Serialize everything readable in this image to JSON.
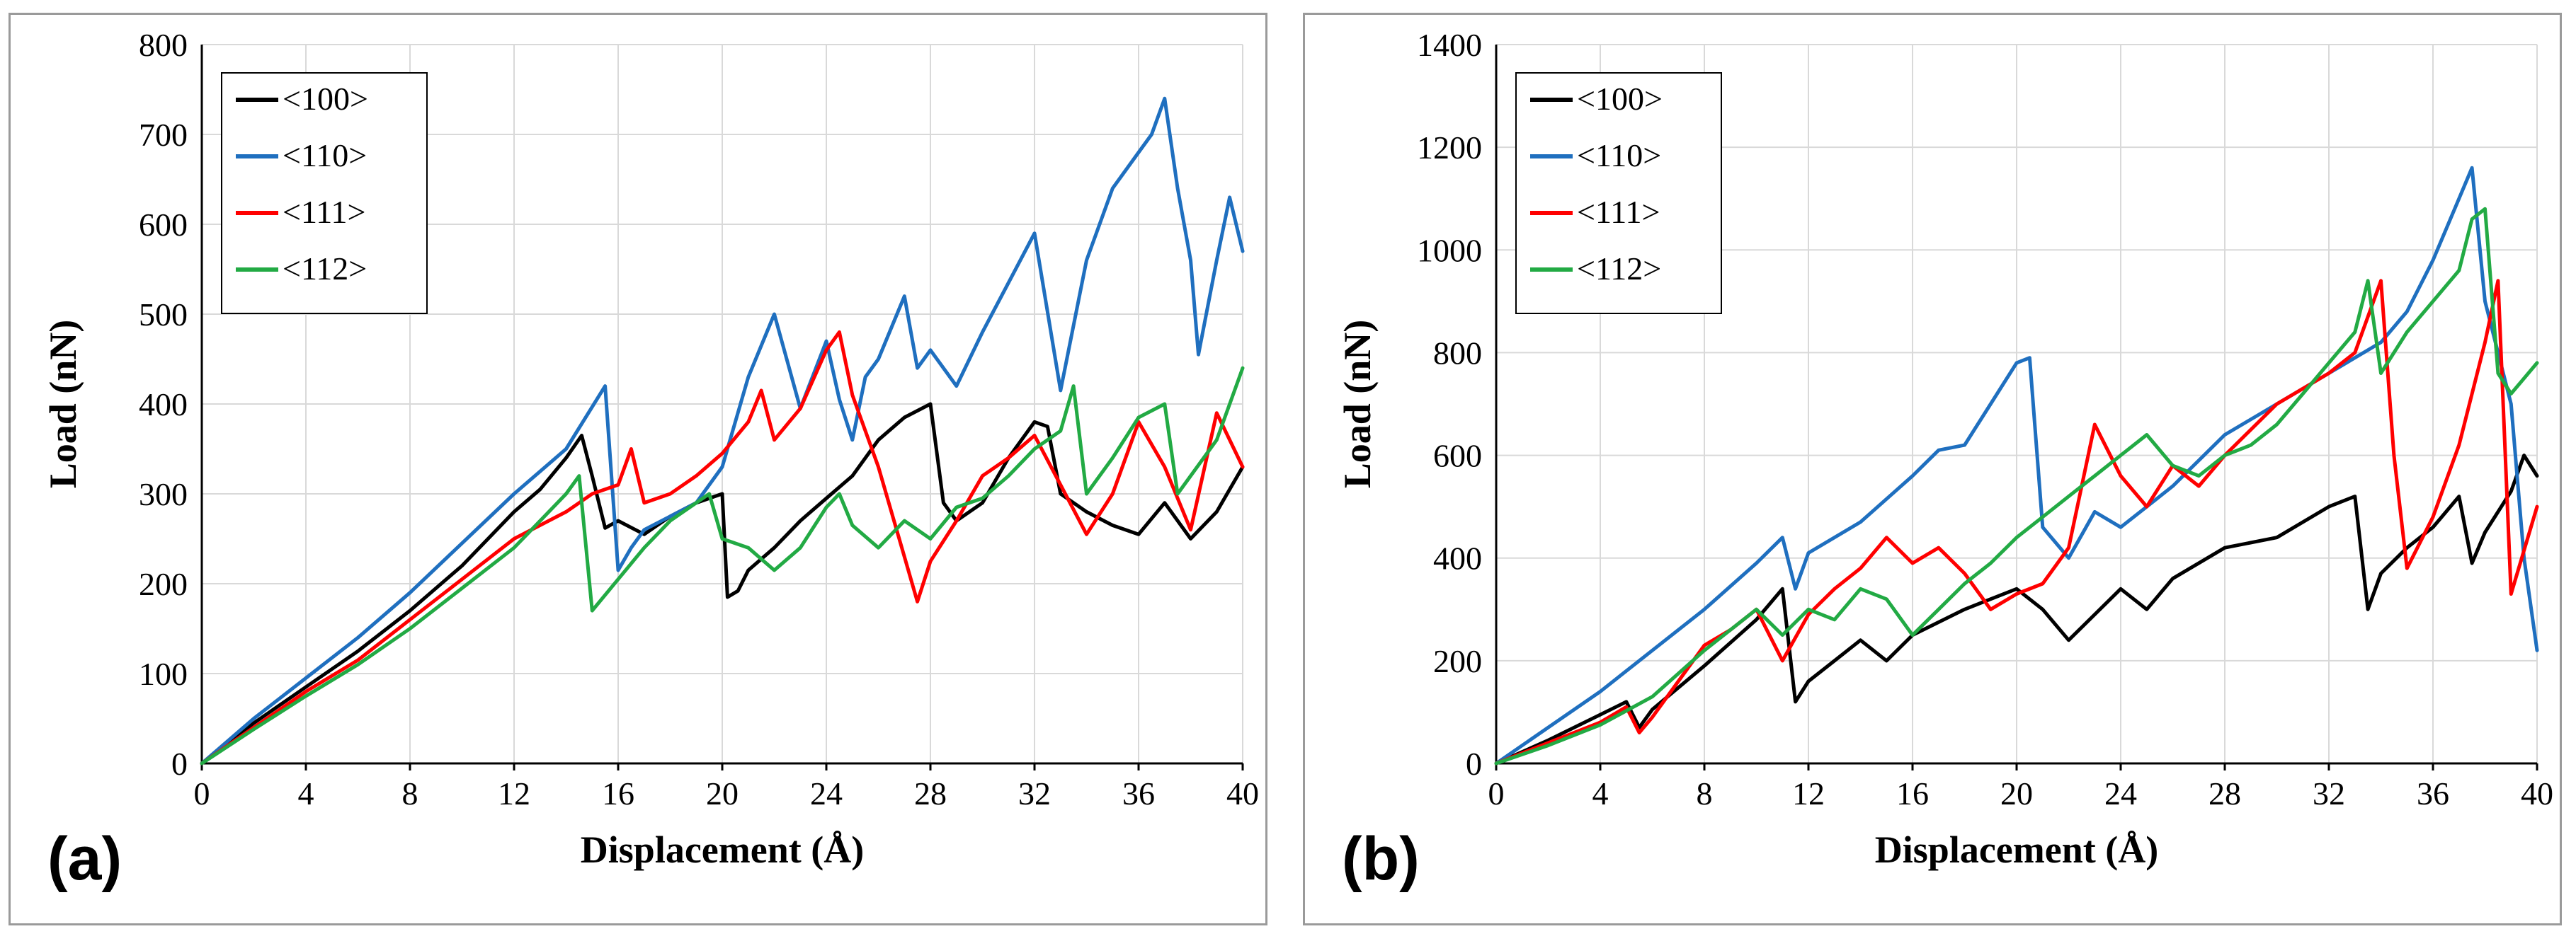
{
  "chart_data": [
    {
      "panel_label": "(a)",
      "type": "line",
      "xlabel": "Displacement (Å)",
      "ylabel": "Load (nN)",
      "xlim": [
        0,
        40
      ],
      "ylim": [
        0,
        800
      ],
      "xticks": [
        0,
        4,
        8,
        12,
        16,
        20,
        24,
        28,
        32,
        36,
        40
      ],
      "yticks": [
        0,
        100,
        200,
        300,
        400,
        500,
        600,
        700,
        800
      ],
      "grid": true,
      "legend_position": "top-left",
      "series": [
        {
          "name": "<100>",
          "color": "#000000",
          "x": [
            0,
            2,
            4,
            6,
            8,
            10,
            12,
            13,
            14,
            14.6,
            15,
            15.5,
            16,
            17,
            18,
            19,
            20,
            20.2,
            20.6,
            21,
            22,
            23,
            24,
            25,
            26,
            27,
            28,
            28.5,
            29,
            30,
            31,
            32,
            32.5,
            33,
            34,
            35,
            36,
            37,
            38,
            39,
            40
          ],
          "y": [
            0,
            45,
            85,
            125,
            170,
            220,
            280,
            305,
            340,
            365,
            320,
            262,
            270,
            255,
            275,
            290,
            300,
            185,
            192,
            215,
            240,
            270,
            295,
            320,
            360,
            385,
            400,
            290,
            270,
            290,
            340,
            380,
            375,
            300,
            280,
            265,
            255,
            290,
            250,
            280,
            330
          ]
        },
        {
          "name": "<110>",
          "color": "#1F6FBF",
          "x": [
            0,
            2,
            4,
            6,
            8,
            10,
            12,
            14,
            15.5,
            16,
            16.5,
            17,
            18,
            19,
            20,
            21,
            22,
            23,
            24,
            24.5,
            25,
            25.5,
            26,
            27,
            27.5,
            28,
            29,
            30,
            31,
            32,
            33,
            34,
            35,
            36,
            36.5,
            37,
            37.5,
            38,
            38.3,
            39,
            39.5,
            40
          ],
          "y": [
            0,
            50,
            95,
            140,
            190,
            245,
            300,
            350,
            420,
            215,
            240,
            260,
            275,
            290,
            330,
            430,
            500,
            395,
            470,
            405,
            360,
            430,
            450,
            520,
            440,
            460,
            420,
            480,
            535,
            590,
            415,
            560,
            640,
            680,
            700,
            740,
            640,
            560,
            455,
            560,
            630,
            570
          ]
        },
        {
          "name": "<111>",
          "color": "#FF0000",
          "x": [
            0,
            2,
            4,
            6,
            8,
            10,
            12,
            14,
            15,
            16,
            16.5,
            17,
            18,
            19,
            20,
            21,
            21.5,
            22,
            23,
            24,
            24.5,
            25,
            26,
            27,
            27.5,
            28,
            29,
            30,
            31,
            32,
            33,
            34,
            35,
            36,
            37,
            38,
            39,
            40
          ],
          "y": [
            0,
            40,
            80,
            115,
            160,
            205,
            250,
            280,
            300,
            310,
            350,
            290,
            300,
            320,
            345,
            380,
            415,
            360,
            395,
            460,
            480,
            410,
            330,
            230,
            180,
            225,
            270,
            320,
            340,
            365,
            310,
            255,
            300,
            380,
            330,
            260,
            390,
            330
          ]
        },
        {
          "name": "<112>",
          "color": "#22AA44",
          "x": [
            0,
            2,
            4,
            6,
            8,
            10,
            12,
            13,
            14,
            14.5,
            15,
            16,
            17,
            18,
            19,
            19.5,
            20,
            21,
            22,
            23,
            24,
            24.5,
            25,
            26,
            27,
            28,
            29,
            30,
            31,
            32,
            33,
            33.5,
            34,
            35,
            36,
            37,
            37.5,
            38,
            39,
            40
          ],
          "y": [
            0,
            38,
            75,
            110,
            150,
            195,
            240,
            270,
            300,
            320,
            170,
            205,
            240,
            270,
            290,
            300,
            250,
            240,
            215,
            240,
            285,
            300,
            265,
            240,
            270,
            250,
            285,
            295,
            320,
            350,
            370,
            420,
            300,
            340,
            385,
            400,
            300,
            320,
            360,
            440
          ]
        }
      ]
    },
    {
      "panel_label": "(b)",
      "type": "line",
      "xlabel": "Displacement (Å)",
      "ylabel": "Load (nN)",
      "xlim": [
        0,
        40
      ],
      "ylim": [
        0,
        1400
      ],
      "xticks": [
        0,
        4,
        8,
        12,
        16,
        20,
        24,
        28,
        32,
        36,
        40
      ],
      "yticks": [
        0,
        200,
        400,
        600,
        800,
        1000,
        1200,
        1400
      ],
      "grid": true,
      "legend_position": "top-left",
      "series": [
        {
          "name": "<100>",
          "color": "#000000",
          "x": [
            0,
            2,
            4,
            5,
            5.5,
            6,
            8,
            10,
            11,
            11.5,
            12,
            13,
            14,
            15,
            16,
            18,
            20,
            21,
            22,
            23,
            24,
            25,
            26,
            28,
            30,
            32,
            33,
            33.5,
            34,
            35,
            36,
            37,
            37.5,
            38,
            39,
            39.5,
            40
          ],
          "y": [
            0,
            45,
            95,
            120,
            70,
            105,
            190,
            280,
            340,
            120,
            160,
            200,
            240,
            200,
            250,
            300,
            340,
            300,
            240,
            290,
            340,
            300,
            360,
            420,
            440,
            500,
            520,
            300,
            370,
            420,
            460,
            520,
            390,
            450,
            530,
            600,
            560
          ]
        },
        {
          "name": "<110>",
          "color": "#1F6FBF",
          "x": [
            0,
            2,
            4,
            6,
            8,
            10,
            11,
            11.5,
            12,
            14,
            16,
            17,
            18,
            19,
            20,
            20.5,
            21,
            22,
            23,
            24,
            26,
            28,
            30,
            32,
            34,
            35,
            36,
            37,
            37.5,
            38,
            39,
            39.5,
            40
          ],
          "y": [
            0,
            70,
            140,
            220,
            300,
            390,
            440,
            340,
            410,
            470,
            560,
            610,
            620,
            700,
            780,
            790,
            460,
            400,
            490,
            460,
            540,
            640,
            700,
            760,
            820,
            880,
            980,
            1100,
            1160,
            900,
            700,
            400,
            220
          ]
        },
        {
          "name": "<111>",
          "color": "#FF0000",
          "x": [
            0,
            2,
            4,
            5,
            5.5,
            6,
            7,
            8,
            9,
            10,
            11,
            12,
            13,
            14,
            15,
            16,
            17,
            18,
            19,
            20,
            21,
            22,
            23,
            24,
            25,
            26,
            27,
            28,
            30,
            32,
            33,
            34,
            34.5,
            35,
            36,
            37,
            38,
            38.5,
            39,
            40
          ],
          "y": [
            0,
            40,
            80,
            110,
            60,
            90,
            160,
            230,
            260,
            300,
            200,
            290,
            340,
            380,
            440,
            390,
            420,
            370,
            300,
            330,
            350,
            420,
            660,
            560,
            500,
            580,
            540,
            600,
            700,
            760,
            800,
            940,
            600,
            380,
            480,
            620,
            820,
            940,
            330,
            500
          ]
        },
        {
          "name": "<112>",
          "color": "#22AA44",
          "x": [
            0,
            2,
            4,
            6,
            8,
            9,
            10,
            11,
            12,
            13,
            14,
            15,
            16,
            17,
            18,
            19,
            20,
            21,
            22,
            23,
            24,
            25,
            26,
            27,
            28,
            29,
            30,
            31,
            32,
            33,
            33.5,
            34,
            35,
            36,
            37,
            37.5,
            38,
            38.5,
            39,
            40
          ],
          "y": [
            0,
            35,
            75,
            130,
            220,
            260,
            300,
            250,
            300,
            280,
            340,
            320,
            250,
            300,
            350,
            390,
            440,
            480,
            520,
            560,
            600,
            640,
            580,
            560,
            600,
            620,
            660,
            720,
            780,
            840,
            940,
            760,
            840,
            900,
            960,
            1060,
            1080,
            760,
            720,
            780
          ]
        }
      ]
    }
  ]
}
